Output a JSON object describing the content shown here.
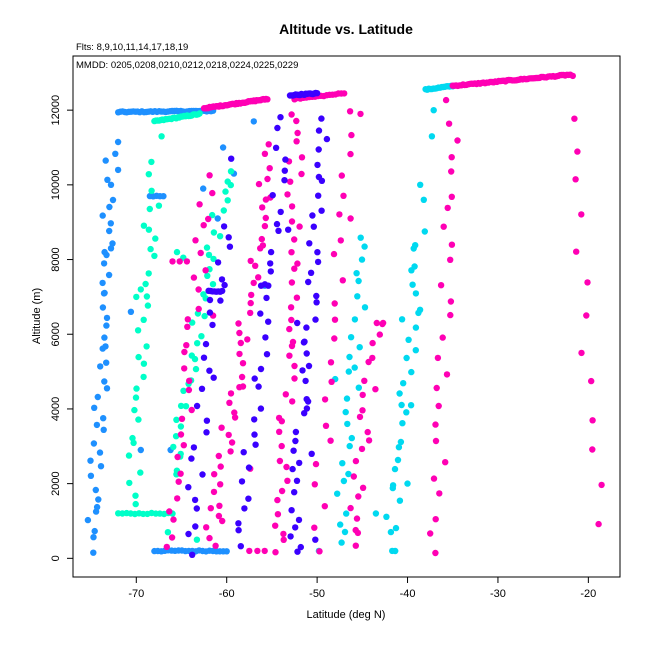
{
  "chart_data": {
    "type": "scatter",
    "title": "Altitude vs. Latitude",
    "subtitle": "Flts: 8,9,10,11,14,17,18,19",
    "annotation": "MMDD: 0205,0208,0210,0212,0218,0224,0225,0229",
    "xlabel": "Latitude (deg N)",
    "ylabel": "Altitude (m)",
    "xlim": [
      -77,
      -16.5
    ],
    "ylim": [
      -500,
      13450
    ],
    "x_ticks": [
      -70,
      -60,
      -50,
      -40,
      -30,
      -20
    ],
    "y_ticks": [
      0,
      2000,
      4000,
      6000,
      8000,
      10000,
      12000
    ],
    "grid": false,
    "legend": "none",
    "series": [
      {
        "color": "#1E90FF",
        "segments": [
          {
            "x0": -75.0,
            "y0": 200,
            "x1": -72.5,
            "y1": 11100,
            "n": 46
          },
          {
            "x0": -72.0,
            "y0": 11950,
            "x1": -61.5,
            "y1": 11980,
            "n": 45
          },
          {
            "x0": -68.5,
            "y0": 9700,
            "x1": -67.0,
            "y1": 9700,
            "n": 5
          },
          {
            "x0": -68.0,
            "y0": 200,
            "x1": -60.0,
            "y1": 200,
            "n": 22
          }
        ],
        "points": [
          [
            -73.5,
            8200
          ],
          [
            -72.8,
            8300
          ],
          [
            -70.6,
            6600
          ],
          [
            -69.5,
            2900
          ],
          [
            -66.2,
            2900
          ],
          [
            -62.6,
            9900
          ],
          [
            -61.0,
            9100
          ],
          [
            -60.4,
            11000
          ],
          [
            -59.2,
            10300
          ],
          [
            -57.0,
            11700
          ],
          [
            -55.8,
            7300
          ]
        ]
      },
      {
        "color": "#00FFC8",
        "segments": [
          {
            "x0": -70.5,
            "y0": 1400,
            "x1": -68.0,
            "y1": 10500,
            "n": 30
          },
          {
            "x0": -68.0,
            "y0": 11700,
            "x1": -63.0,
            "y1": 11900,
            "n": 30
          },
          {
            "x0": -66.0,
            "y0": 2200,
            "x1": -60.0,
            "y1": 10400,
            "n": 38
          },
          {
            "x0": -72.0,
            "y0": 1200,
            "x1": -66.0,
            "y1": 1200,
            "n": 14
          }
        ],
        "points": [
          [
            -65.5,
            8200
          ],
          [
            -64.8,
            8050
          ],
          [
            -67.2,
            11300
          ],
          [
            -70.0,
            7000
          ],
          [
            -69.5,
            7200
          ],
          [
            -68.6,
            8800
          ],
          [
            -66.5,
            700
          ],
          [
            -63.3,
            500
          ]
        ]
      },
      {
        "color": "#00D9F0",
        "segments": [
          {
            "x0": -47.5,
            "y0": 300,
            "x1": -44.5,
            "y1": 8700,
            "n": 26
          },
          {
            "x0": -42.0,
            "y0": 300,
            "x1": -38.5,
            "y1": 8800,
            "n": 30
          },
          {
            "x0": -38.0,
            "y0": 12550,
            "x1": -35.0,
            "y1": 12650,
            "n": 18
          }
        ],
        "points": [
          [
            -37.3,
            11300
          ],
          [
            -38.6,
            10000
          ],
          [
            -40.6,
            6400
          ],
          [
            -41.7,
            200
          ],
          [
            -43.5,
            1200
          ],
          [
            -46.5,
            5000
          ],
          [
            -49.8,
            200
          ],
          [
            -48.0,
            4800
          ],
          [
            -39.6,
            4100
          ],
          [
            -40.0,
            2000
          ],
          [
            -37.1,
            12000
          ],
          [
            -38.2,
            9600
          ]
        ]
      },
      {
        "color": "#FF00B4",
        "segments": [
          {
            "x0": -62.5,
            "y0": 12050,
            "x1": -55.5,
            "y1": 12300,
            "n": 48
          },
          {
            "x0": -35.0,
            "y0": 12650,
            "x1": -22.0,
            "y1": 12950,
            "n": 70
          },
          {
            "x0": -22.5,
            "y0": 12800,
            "x1": -18.9,
            "y1": 1000,
            "n": 14
          },
          {
            "x0": -62.0,
            "y0": 300,
            "x1": -55.0,
            "y1": 11000,
            "n": 45
          },
          {
            "x0": -66.0,
            "y0": 300,
            "x1": -62.0,
            "y1": 10200,
            "n": 30
          },
          {
            "x0": -46.0,
            "y0": 300,
            "x1": -43.5,
            "y1": 6300,
            "n": 22
          },
          {
            "x0": -37.0,
            "y0": 200,
            "x1": -35.0,
            "y1": 12200,
            "n": 26
          },
          {
            "x0": -54.0,
            "y0": 100,
            "x1": -52.2,
            "y1": 12000,
            "n": 42
          },
          {
            "x0": -52.5,
            "y0": 12300,
            "x1": -47.0,
            "y1": 12450,
            "n": 18
          },
          {
            "x0": -50.0,
            "y0": 300,
            "x1": -46.5,
            "y1": 11900,
            "n": 22
          }
        ],
        "points": [
          [
            -66.0,
            7950
          ],
          [
            -65.2,
            7950
          ],
          [
            -64.4,
            7950
          ],
          [
            -43.4,
            6300
          ],
          [
            -42.7,
            6300
          ],
          [
            -57.5,
            200
          ],
          [
            -56.6,
            200
          ],
          [
            -55.8,
            200
          ],
          [
            -61.5,
            6500
          ],
          [
            -58.2,
            4600
          ],
          [
            -57.4,
            2400
          ],
          [
            -60.5,
            1000
          ],
          [
            -59.4,
            3100
          ],
          [
            -56.3,
            8300
          ],
          [
            -46.3,
            9100
          ],
          [
            -45.2,
            11900
          ]
        ]
      },
      {
        "color": "#3A00FF",
        "segments": [
          {
            "x0": -53.0,
            "y0": 12400,
            "x1": -50.0,
            "y1": 12450,
            "n": 20
          },
          {
            "x0": -52.5,
            "y0": 200,
            "x1": -49.5,
            "y1": 11800,
            "n": 40
          },
          {
            "x0": -62.0,
            "y0": 7150,
            "x1": -60.5,
            "y1": 7150,
            "n": 8
          },
          {
            "x0": -64.5,
            "y0": 200,
            "x1": -60.0,
            "y1": 9000,
            "n": 26
          },
          {
            "x0": -58.5,
            "y0": 300,
            "x1": -53.5,
            "y1": 11800,
            "n": 34
          }
        ],
        "points": [
          [
            -56.2,
            7300
          ],
          [
            -55.4,
            7300
          ],
          [
            -52.2,
            6300
          ],
          [
            -51.4,
            5800
          ],
          [
            -51.0,
            4200
          ],
          [
            -50.6,
            2800
          ],
          [
            -53.2,
            8800
          ],
          [
            -50.2,
            500
          ],
          [
            -51.8,
            300
          ],
          [
            -59.5,
            10700
          ],
          [
            -60.7,
            6900
          ]
        ]
      }
    ]
  }
}
